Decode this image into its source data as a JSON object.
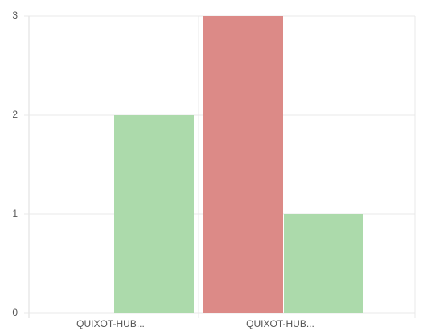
{
  "chart_data": {
    "type": "bar",
    "categories": [
      "QUIXOT-HUB...",
      "QUIXOT-HUB..."
    ],
    "series": [
      {
        "color": "#dc8a87",
        "values": [
          0,
          3
        ]
      },
      {
        "color": "#acdaab",
        "values": [
          2,
          1
        ]
      }
    ],
    "ylim": [
      0,
      3
    ],
    "yticks": [
      0,
      1,
      2,
      3
    ],
    "grid": true
  }
}
